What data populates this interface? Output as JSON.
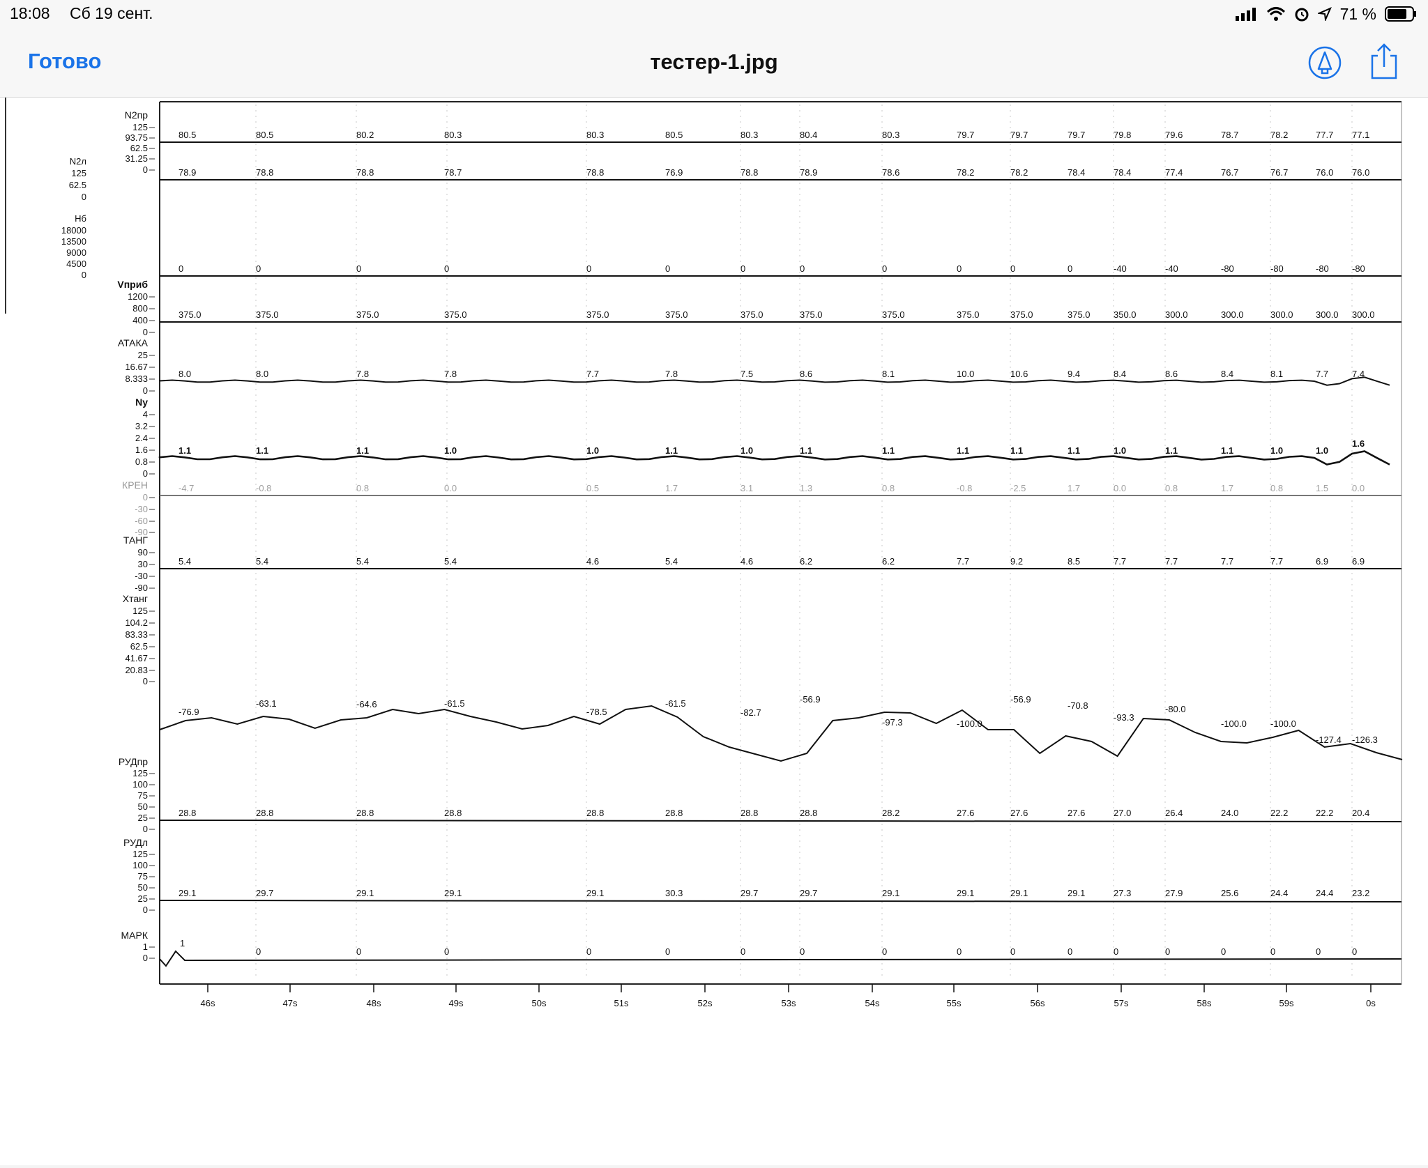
{
  "status_bar": {
    "time": "18:08",
    "date": "Сб 19 сент.",
    "battery": "71 %",
    "icons": [
      "cellular-signal-icon",
      "wifi-icon",
      "alarm-icon",
      "location-arrow-icon",
      "battery-icon"
    ]
  },
  "nav": {
    "done_label": "Готово",
    "title": "тестер-1.jpg",
    "markup_icon": "markup-pen-icon",
    "share_icon": "share-icon",
    "accent": "#1a73e8"
  },
  "chart_data": {
    "type": "line",
    "x_ticks": [
      "46s",
      "47s",
      "48s",
      "49s",
      "50s",
      "51s",
      "52s",
      "53s",
      "54s",
      "55s",
      "56s",
      "57s",
      "58s",
      "59s",
      "0s"
    ],
    "extra_left_labels": [
      "N2л",
      "125",
      "62.5",
      "0",
      "Нб",
      "18000",
      "13500",
      "9000",
      "4500",
      "0"
    ],
    "channels": [
      {
        "ticks": [
          "N2пр",
          "125",
          "93.75",
          "62.5",
          "31.25",
          "0"
        ],
        "values": [
          "80.5",
          "80.5",
          "80.2",
          "80.3",
          "80.3",
          "80.5",
          "80.3",
          "80.4",
          "80.3",
          "79.7",
          "79.7",
          "79.7",
          "79.8",
          "79.6",
          "78.7",
          "78.2",
          "77.7",
          "77.1"
        ]
      },
      {
        "ticks": [],
        "values": [
          "78.9",
          "78.8",
          "78.8",
          "78.7",
          "78.8",
          "76.9",
          "78.8",
          "78.9",
          "78.6",
          "78.2",
          "78.2",
          "78.4",
          "78.4",
          "77.4",
          "76.7",
          "76.7",
          "76.0",
          "76.0"
        ]
      },
      {
        "ticks": [],
        "values": [
          "0",
          "0",
          "0",
          "0",
          "0",
          "0",
          "0",
          "0",
          "0",
          "0",
          "0",
          "0",
          "-40",
          "-40",
          "-80",
          "-80",
          "-80",
          "-80"
        ]
      },
      {
        "ticks": [
          "Vприб",
          "1200",
          "800",
          "400",
          "0"
        ],
        "values": [
          "375.0",
          "375.0",
          "375.0",
          "375.0",
          "375.0",
          "375.0",
          "375.0",
          "375.0",
          "375.0",
          "375.0",
          "375.0",
          "375.0",
          "350.0",
          "300.0",
          "300.0",
          "300.0",
          "300.0",
          "300.0"
        ]
      },
      {
        "ticks": [
          "АТАКА",
          "25",
          "16.67",
          "8.333",
          "0"
        ],
        "values": [
          "8.0",
          "8.0",
          "7.8",
          "7.8",
          "7.7",
          "7.8",
          "7.5",
          "8.6",
          "8.1",
          "10.0",
          "10.6",
          "9.4",
          "8.4",
          "8.6",
          "8.4",
          "8.1",
          "7.7",
          "7.4"
        ]
      },
      {
        "ticks": [
          "Ny",
          "4",
          "3.2",
          "2.4",
          "1.6",
          "0.8",
          "0"
        ],
        "values": [
          "1.1",
          "1.1",
          "1.1",
          "1.0",
          "1.0",
          "1.1",
          "1.0",
          "1.1",
          "1.1",
          "1.1",
          "1.1",
          "1.1",
          "1.0",
          "1.1",
          "1.1",
          "1.0",
          "1.0",
          "1.6"
        ]
      },
      {
        "ticks": [
          "КРЕН",
          "0",
          "-30",
          "-60",
          "-90"
        ],
        "values": [
          "-4.7",
          "-0.8",
          "0.8",
          "0.0",
          "0.5",
          "1.7",
          "3.1",
          "1.3",
          "0.8",
          "-0.8",
          "-2.5",
          "1.7",
          "0.0",
          "0.8",
          "1.7",
          "0.8",
          "1.5",
          "0.0"
        ]
      },
      {
        "ticks": [
          "ТАНГ",
          "90",
          "30",
          "-30",
          "-90"
        ],
        "values": [
          "5.4",
          "5.4",
          "5.4",
          "5.4",
          "4.6",
          "5.4",
          "4.6",
          "6.2",
          "6.2",
          "7.7",
          "9.2",
          "8.5",
          "7.7",
          "7.7",
          "7.7",
          "7.7",
          "6.9",
          "6.9"
        ]
      },
      {
        "ticks": [
          "Хтанг",
          "125",
          "104.2",
          "83.33",
          "62.5",
          "41.67",
          "20.83",
          "0"
        ],
        "values": [
          "-76.9",
          "-63.1",
          "-64.6",
          "-61.5",
          "-78.5",
          "-61.5",
          "-82.7",
          "-56.9",
          "-97.3",
          "-100.0",
          "-56.9",
          "-70.8",
          "-93.3",
          "-80.0",
          "-100.0",
          "-100.0",
          "-127.4",
          "-126.3"
        ]
      },
      {
        "ticks": [
          "РУДпр",
          "125",
          "100",
          "75",
          "50",
          "25",
          "0"
        ],
        "values": [
          "28.8",
          "28.8",
          "28.8",
          "28.8",
          "28.8",
          "28.8",
          "28.8",
          "28.8",
          "28.2",
          "27.6",
          "27.6",
          "27.6",
          "27.0",
          "26.4",
          "24.0",
          "22.2",
          "22.2",
          "20.4"
        ]
      },
      {
        "ticks": [
          "РУДл",
          "125",
          "100",
          "75",
          "50",
          "25",
          "0"
        ],
        "values": [
          "29.1",
          "29.7",
          "29.1",
          "29.1",
          "29.1",
          "30.3",
          "29.7",
          "29.7",
          "29.1",
          "29.1",
          "29.1",
          "29.1",
          "27.3",
          "27.9",
          "25.6",
          "24.4",
          "24.4",
          "23.2"
        ]
      },
      {
        "ticks": [
          "МАРК",
          "1",
          "0"
        ],
        "values": [
          "1",
          "0",
          "0",
          "0",
          "0",
          "0",
          "0",
          "0",
          "0",
          "0",
          "0",
          "0",
          "0",
          "0",
          "0",
          "0",
          "0",
          "0"
        ]
      }
    ]
  }
}
